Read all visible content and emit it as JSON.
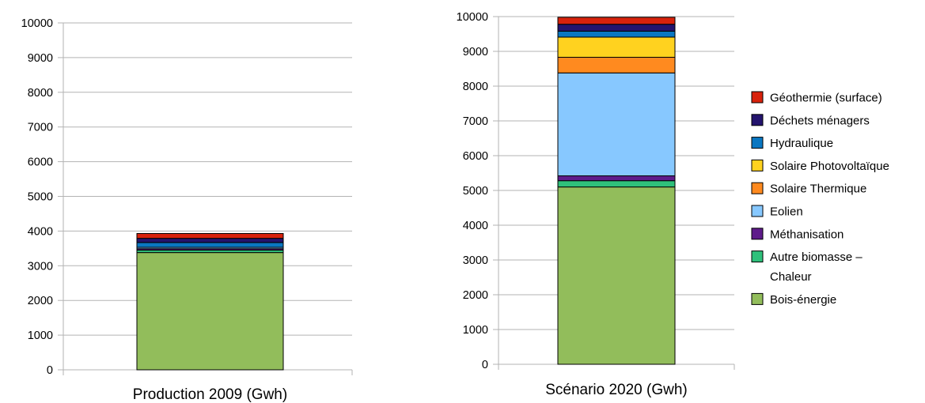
{
  "chart_data": [
    {
      "type": "bar",
      "stacked": true,
      "categories": [
        "Production  2009 (Gwh)"
      ],
      "ylim": [
        0,
        10000
      ],
      "yticks": [
        0,
        1000,
        2000,
        3000,
        4000,
        5000,
        6000,
        7000,
        8000,
        9000,
        10000
      ],
      "grid": true,
      "series": [
        {
          "name": "Bois-énergie",
          "color": "#92bd5b",
          "values": [
            3380
          ]
        },
        {
          "name": "Autre biomasse – Chaleur",
          "color": "#2fc07b",
          "values": [
            70
          ]
        },
        {
          "name": "Méthanisation",
          "color": "#5e1b8a",
          "values": [
            40
          ]
        },
        {
          "name": "Eolien",
          "color": "#87c8ff",
          "values": [
            40
          ]
        },
        {
          "name": "Solaire Thermique",
          "color": "#ff8a1f",
          "values": [
            0
          ]
        },
        {
          "name": "Solaire Photovoltaïque",
          "color": "#ffd21f",
          "values": [
            0
          ]
        },
        {
          "name": "Hydraulique",
          "color": "#0a77c2",
          "values": [
            140
          ]
        },
        {
          "name": "Déchets ménagers",
          "color": "#24146e",
          "values": [
            120
          ]
        },
        {
          "name": "Géothermie (surface)",
          "color": "#d8220c",
          "values": [
            140
          ]
        }
      ]
    },
    {
      "type": "bar",
      "stacked": true,
      "categories": [
        "Scénario 2020 (Gwh)"
      ],
      "ylim": [
        0,
        10000
      ],
      "yticks": [
        0,
        1000,
        2000,
        3000,
        4000,
        5000,
        6000,
        7000,
        8000,
        9000,
        10000
      ],
      "grid": true,
      "legend_position": "right",
      "series": [
        {
          "name": "Bois-énergie",
          "color": "#92bd5b",
          "values": [
            5100
          ]
        },
        {
          "name": "Autre biomasse – Chaleur",
          "color": "#2fc07b",
          "values": [
            180
          ]
        },
        {
          "name": "Méthanisation",
          "color": "#5e1b8a",
          "values": [
            140
          ]
        },
        {
          "name": "Eolien",
          "color": "#87c8ff",
          "values": [
            2960
          ]
        },
        {
          "name": "Solaire Thermique",
          "color": "#ff8a1f",
          "values": [
            450
          ]
        },
        {
          "name": "Solaire Photovoltaïque",
          "color": "#ffd21f",
          "values": [
            580
          ]
        },
        {
          "name": "Hydraulique",
          "color": "#0a77c2",
          "values": [
            170
          ]
        },
        {
          "name": "Déchets ménagers",
          "color": "#24146e",
          "values": [
            200
          ]
        },
        {
          "name": "Géothermie (surface)",
          "color": "#d8220c",
          "values": [
            200
          ]
        }
      ]
    }
  ],
  "legend": {
    "items": [
      {
        "line1": "Géothermie (surface)",
        "line2": "",
        "color": "#d8220c"
      },
      {
        "line1": "Déchets ménagers",
        "line2": "",
        "color": "#24146e"
      },
      {
        "line1": "Hydraulique",
        "line2": "",
        "color": "#0a77c2"
      },
      {
        "line1": "Solaire Photovoltaïque",
        "line2": "",
        "color": "#ffd21f"
      },
      {
        "line1": "Solaire Thermique",
        "line2": "",
        "color": "#ff8a1f"
      },
      {
        "line1": "Eolien",
        "line2": "",
        "color": "#87c8ff"
      },
      {
        "line1": "Méthanisation",
        "line2": "",
        "color": "#5e1b8a"
      },
      {
        "line1": "Autre biomasse –",
        "line2": "Chaleur",
        "color": "#2fc07b"
      },
      {
        "line1": "Bois-énergie",
        "line2": "",
        "color": "#92bd5b"
      }
    ]
  }
}
